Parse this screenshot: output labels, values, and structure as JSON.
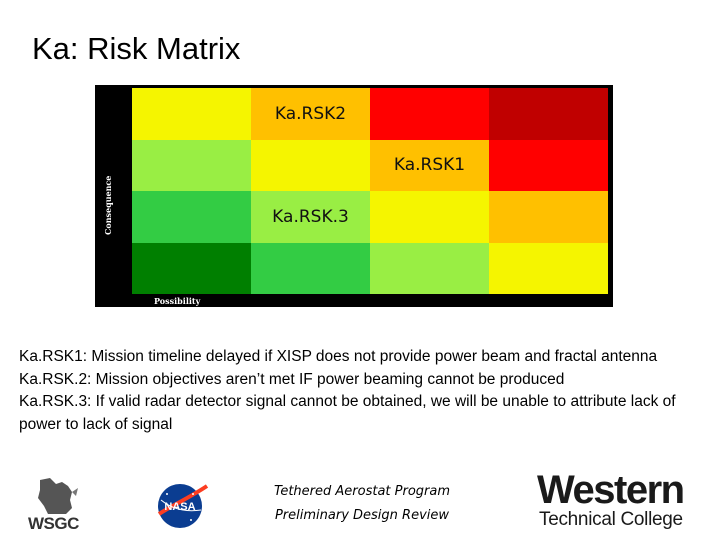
{
  "slide": {
    "title": "Ka: Risk Matrix"
  },
  "matrix": {
    "axis_y": "Consequence",
    "axis_x": "Possibility",
    "cells": [
      {
        "color": "#f5f500",
        "label": ""
      },
      {
        "color": "#ffc000",
        "label": "Ka.RSK2"
      },
      {
        "color": "#ff0000",
        "label": ""
      },
      {
        "color": "#c00000",
        "label": ""
      },
      {
        "color": "#99ee44",
        "label": ""
      },
      {
        "color": "#f5f500",
        "label": ""
      },
      {
        "color": "#ffc000",
        "label": "Ka.RSK1"
      },
      {
        "color": "#ff0000",
        "label": ""
      },
      {
        "color": "#33cc44",
        "label": ""
      },
      {
        "color": "#99ee44",
        "label": "Ka.RSK.3"
      },
      {
        "color": "#f5f500",
        "label": ""
      },
      {
        "color": "#ffc000",
        "label": ""
      },
      {
        "color": "#007f00",
        "label": ""
      },
      {
        "color": "#33cc44",
        "label": ""
      },
      {
        "color": "#99ee44",
        "label": ""
      },
      {
        "color": "#f5f500",
        "label": ""
      }
    ]
  },
  "descriptions": [
    "Ka.RSK1: Mission timeline delayed if XISP does not provide power beam and fractal antenna",
    "Ka.RSK.2: Mission objectives aren’t met IF power beaming cannot be produced",
    "Ka.RSK.3: If valid radar detector signal cannot be obtained, we will be unable to attribute lack of power to lack of signal"
  ],
  "footer": {
    "line1": "Tethered Aerostat Program",
    "line2": "Preliminary Design Review",
    "logo_left_text": "WSGC",
    "logo_center_text": "NASA",
    "logo_right_line1": "Western",
    "logo_right_line2": "Technical College"
  }
}
